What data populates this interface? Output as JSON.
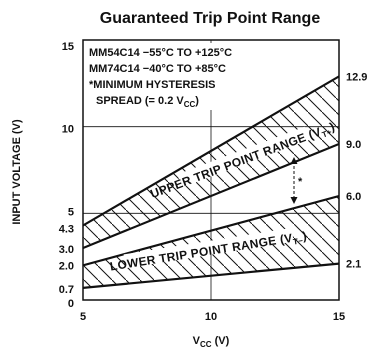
{
  "chart_data": {
    "type": "area",
    "title": "Guaranteed Trip Point Range",
    "xlabel": "V",
    "xlabel_sub": "CC",
    "xlabel_unit": " (V)",
    "ylabel": "INPUT VOLTAGE (V)",
    "xlim": [
      5,
      15
    ],
    "ylim": [
      0,
      15
    ],
    "x_ticks": [
      "5",
      "10",
      "15"
    ],
    "y_ticks": [
      {
        "value": 0,
        "label": "0"
      },
      {
        "value": 0.7,
        "label": "0.7"
      },
      {
        "value": 2.0,
        "label": "2.0"
      },
      {
        "value": 3.0,
        "label": "3.0"
      },
      {
        "value": 4.3,
        "label": "4.3"
      },
      {
        "value": 5,
        "label": "5"
      },
      {
        "value": 10,
        "label": "10"
      },
      {
        "value": 15,
        "label": "15"
      }
    ],
    "right_labels": [
      {
        "value": 12.9,
        "label": "12.9"
      },
      {
        "value": 9.0,
        "label": "9.0"
      },
      {
        "value": 6.0,
        "label": "6.0"
      },
      {
        "value": 2.1,
        "label": "2.1"
      }
    ],
    "x": [
      5,
      15
    ],
    "series": [
      {
        "name": "UPPER TRIP POINT RANGE (V",
        "name_sub": "T+",
        "name_end": ")",
        "upper": [
          4.3,
          12.9
        ],
        "lower": [
          3.0,
          9.0
        ]
      },
      {
        "name": "LOWER TRIP POINT RANGE (V",
        "name_sub": "T−",
        "name_end": ")",
        "upper": [
          2.0,
          6.0
        ],
        "lower": [
          0.7,
          2.1
        ]
      }
    ],
    "notes": [
      "MM54C14  −55°C TO +125°C",
      "MM74C14  −40°C TO  +85°C",
      "*MINIMUM HYSTERESIS"
    ],
    "note_spread": "SPREAD (= 0.2 V",
    "note_spread_sub": "CC",
    "note_spread_end": ")",
    "annotation_mark": "*",
    "grid": true
  }
}
